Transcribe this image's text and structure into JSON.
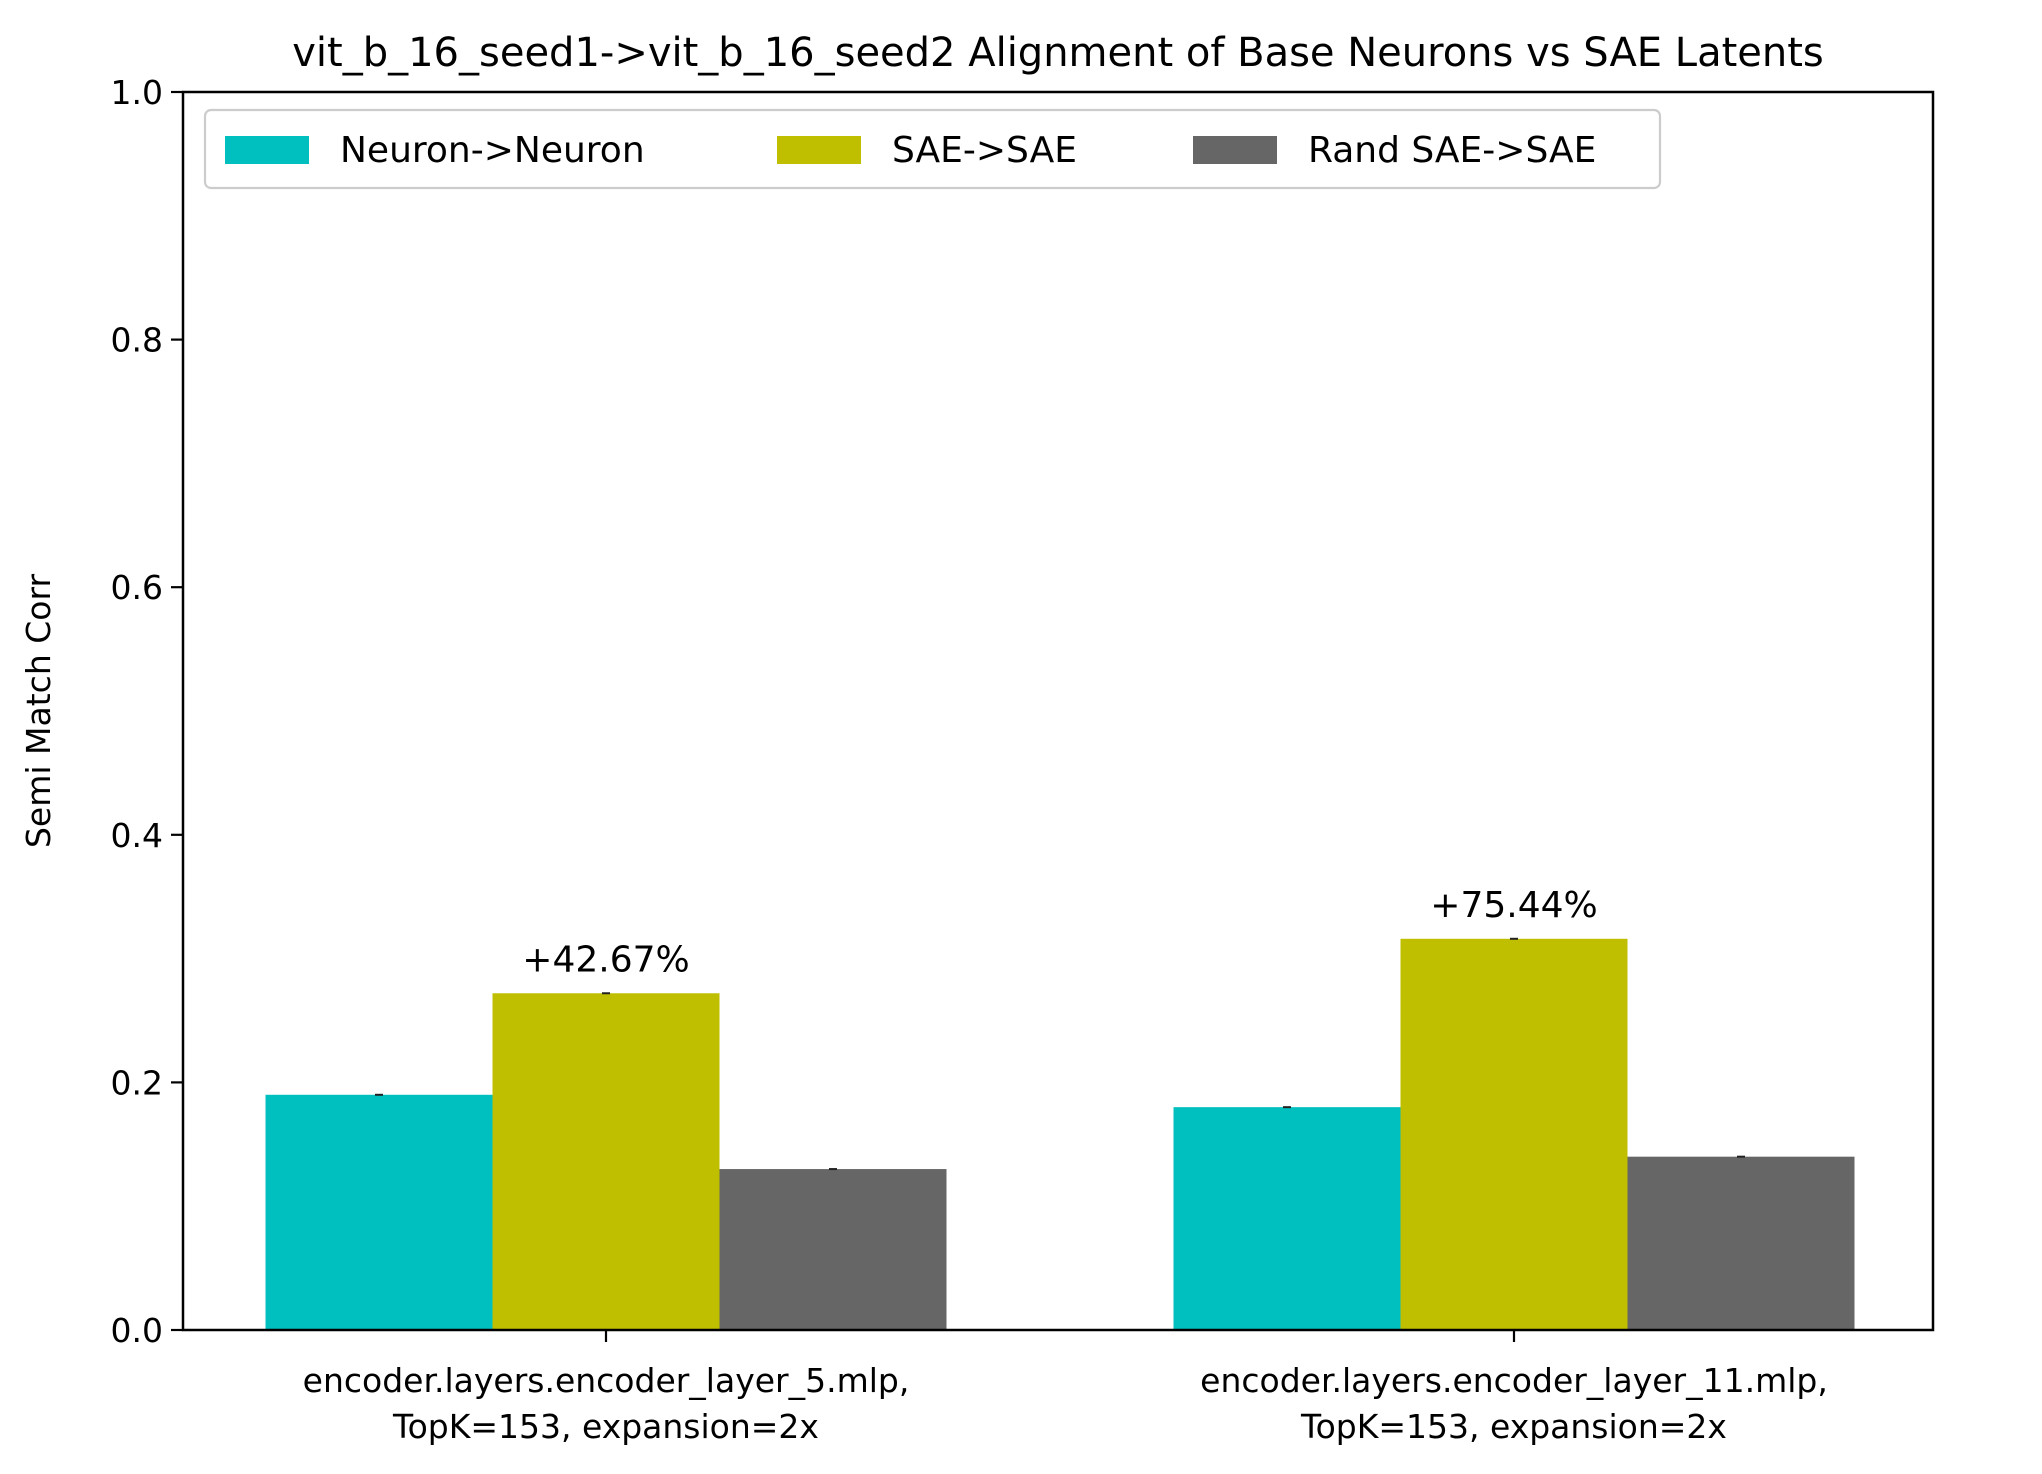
{
  "chart_data": {
    "type": "bar",
    "title": "vit_b_16_seed1->vit_b_16_seed2 Alignment of Base Neurons vs SAE Latents",
    "xlabel": "",
    "ylabel": "Semi Match Corr",
    "ylim": [
      0.0,
      1.0
    ],
    "yticks": [
      "0.0",
      "0.2",
      "0.4",
      "0.6",
      "0.8",
      "1.0"
    ],
    "grid": false,
    "legend_position": "top-left",
    "categories": [
      [
        "encoder.layers.encoder_layer_5.mlp,",
        "TopK=153, expansion=2x"
      ],
      [
        "encoder.layers.encoder_layer_11.mlp,",
        "TopK=153, expansion=2x"
      ]
    ],
    "series": [
      {
        "name": "Neuron->Neuron",
        "color": "#00bfbf",
        "values": [
          0.19,
          0.18
        ]
      },
      {
        "name": "SAE->SAE",
        "color": "#bfbf00",
        "values": [
          0.272,
          0.316
        ]
      },
      {
        "name": "Rand SAE->SAE",
        "color": "#666666",
        "values": [
          0.13,
          0.14
        ]
      }
    ],
    "annotations": [
      "+42.67%",
      "+75.44%"
    ]
  }
}
